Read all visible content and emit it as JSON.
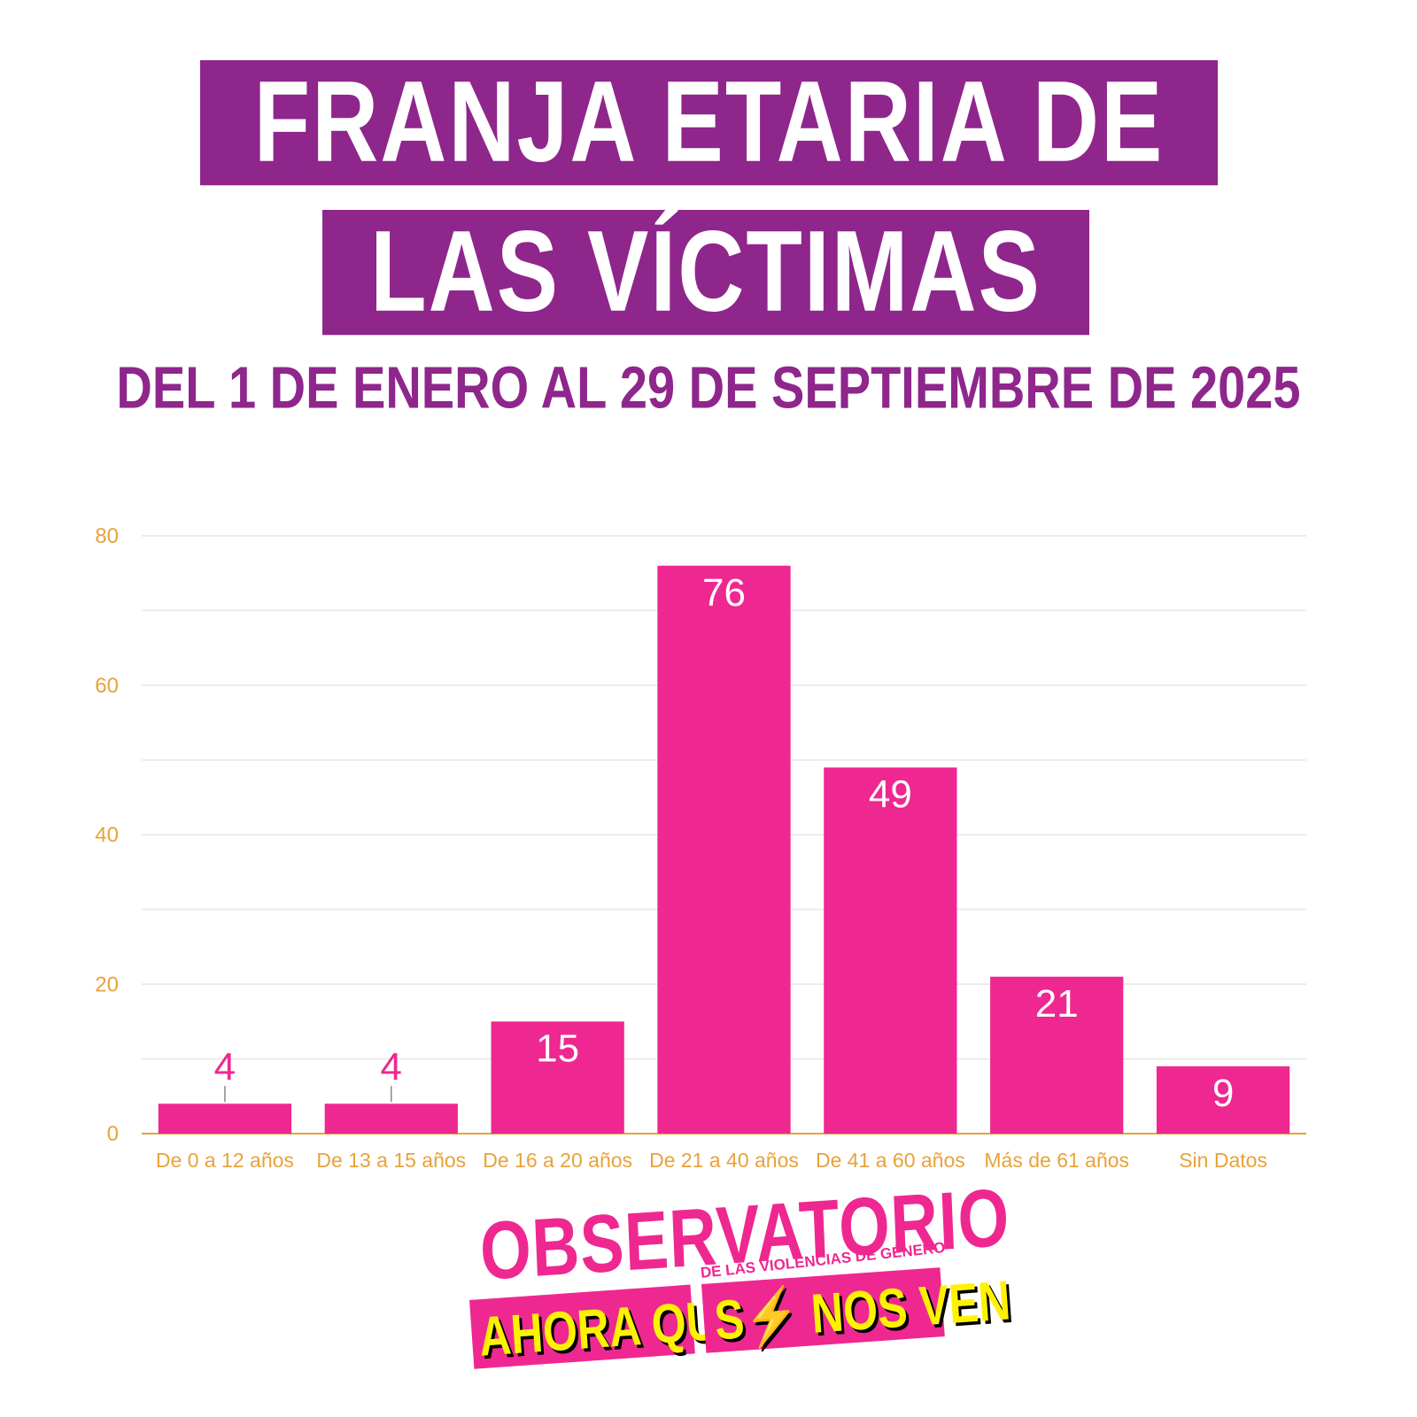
{
  "header": {
    "title_line_1": "FRANJA ETARIA DE",
    "title_line_2": "LAS VÍCTIMAS",
    "subtitle": "DEL 1 DE ENERO AL 29 DE SEPTIEMBRE DE 2025"
  },
  "colors": {
    "title_band": "#8e268c",
    "bar": "#ee2890",
    "axis_text": "#e8a23a",
    "logo_yellow": "#fff200"
  },
  "chart_data": {
    "type": "bar",
    "title": "FRANJA ETARIA DE LAS VÍCTIMAS",
    "subtitle": "DEL 1 DE ENERO AL 29 DE SEPTIEMBRE DE 2025",
    "categories": [
      "De 0 a 12 años",
      "De 13 a 15 años",
      "De 16 a 20 años",
      "De 21 a 40 años",
      "De 41 a 60 años",
      "Más de 61 años",
      "Sin Datos"
    ],
    "values": [
      4,
      4,
      15,
      76,
      49,
      21,
      9
    ],
    "xlabel": "",
    "ylabel": "",
    "ylim": [
      0,
      80
    ],
    "yticks": [
      0,
      20,
      40,
      60,
      80
    ],
    "grid": true,
    "data_labels": true
  },
  "logo": {
    "top_text": "OBSERVATORIO",
    "small_text": "DE LAS VIOLENCIAS DE GÉNERO",
    "band_1_text": "AHORA QUE",
    "band_2_text": "S⚡ NOS VEN"
  }
}
